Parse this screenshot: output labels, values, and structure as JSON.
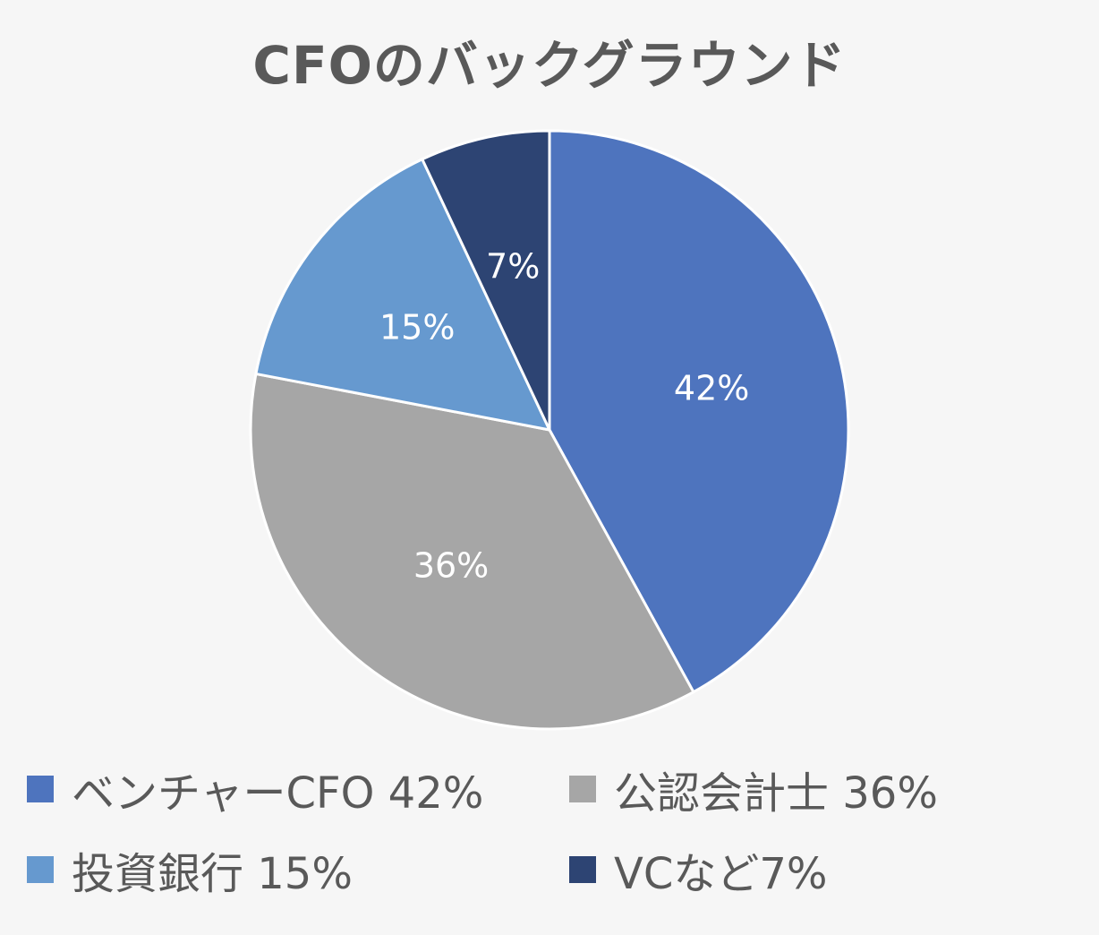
{
  "chart_data": {
    "type": "pie",
    "title": "CFOのバックグラウンド",
    "categories": [
      "ベンチャーCFO",
      "公認会計士",
      "投資銀行",
      "VCなど"
    ],
    "values": [
      42,
      36,
      15,
      7
    ],
    "data_labels": [
      "42%",
      "36%",
      "15%",
      "7%"
    ],
    "colors": [
      "#4e74be",
      "#a6a6a6",
      "#6699cf",
      "#2d4473"
    ],
    "legend": {
      "placement": "bottom",
      "entries": [
        "ベンチャーCFO 42%",
        "公認会計士 36%",
        "投資銀行 15%",
        "VCなど7%"
      ]
    },
    "start_angle": "12 o'clock",
    "direction": "clockwise"
  }
}
